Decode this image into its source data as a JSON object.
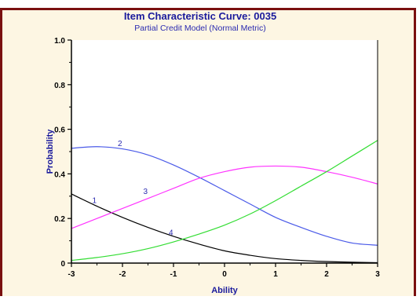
{
  "chart_data": {
    "type": "line",
    "title": "Item Characteristic Curve: 0035",
    "subtitle": "Partial Credit Model (Normal Metric)",
    "xlabel": "Ability",
    "ylabel": "Probability",
    "xlim": [
      -3,
      3
    ],
    "ylim": [
      0,
      1.0
    ],
    "x_ticks": [
      "-3",
      "-2",
      "-1",
      "0",
      "1",
      "2",
      "3"
    ],
    "y_ticks": [
      "0",
      "0.2",
      "0.4",
      "0.6",
      "0.8",
      "1.0"
    ],
    "grid": false,
    "legend": "none",
    "series": [
      {
        "name": "1",
        "color": "#000000",
        "label_at": [
          -2.55,
          0.27
        ],
        "points": [
          [
            -3,
            0.31
          ],
          [
            -2.5,
            0.255
          ],
          [
            -2,
            0.205
          ],
          [
            -1.5,
            0.16
          ],
          [
            -1,
            0.12
          ],
          [
            -0.5,
            0.085
          ],
          [
            0,
            0.055
          ],
          [
            0.5,
            0.035
          ],
          [
            1,
            0.02
          ],
          [
            1.5,
            0.012
          ],
          [
            2,
            0.007
          ],
          [
            2.5,
            0.004
          ],
          [
            3,
            0.002
          ]
        ]
      },
      {
        "name": "2",
        "color": "#4a5ae8",
        "label_at": [
          -2.05,
          0.525
        ],
        "points": [
          [
            -3,
            0.515
          ],
          [
            -2.5,
            0.522
          ],
          [
            -2,
            0.512
          ],
          [
            -1.5,
            0.485
          ],
          [
            -1,
            0.44
          ],
          [
            -0.5,
            0.385
          ],
          [
            0,
            0.325
          ],
          [
            0.5,
            0.265
          ],
          [
            1,
            0.205
          ],
          [
            1.5,
            0.16
          ],
          [
            2,
            0.12
          ],
          [
            2.5,
            0.09
          ],
          [
            3,
            0.08
          ]
        ]
      },
      {
        "name": "3",
        "color": "#ff33ff",
        "label_at": [
          -1.55,
          0.31
        ],
        "points": [
          [
            -3,
            0.155
          ],
          [
            -2.5,
            0.2
          ],
          [
            -2,
            0.245
          ],
          [
            -1.5,
            0.29
          ],
          [
            -1,
            0.335
          ],
          [
            -0.5,
            0.38
          ],
          [
            0,
            0.41
          ],
          [
            0.5,
            0.43
          ],
          [
            1,
            0.435
          ],
          [
            1.5,
            0.43
          ],
          [
            2,
            0.41
          ],
          [
            2.5,
            0.385
          ],
          [
            3,
            0.355
          ]
        ]
      },
      {
        "name": "4",
        "color": "#33dd33",
        "label_at": [
          -1.05,
          0.125
        ],
        "points": [
          [
            -3,
            0.012
          ],
          [
            -2.5,
            0.025
          ],
          [
            -2,
            0.042
          ],
          [
            -1.5,
            0.065
          ],
          [
            -1,
            0.095
          ],
          [
            -0.5,
            0.13
          ],
          [
            0,
            0.17
          ],
          [
            0.5,
            0.22
          ],
          [
            1,
            0.28
          ],
          [
            1.5,
            0.345
          ],
          [
            2,
            0.41
          ],
          [
            2.5,
            0.48
          ],
          [
            3,
            0.55
          ]
        ]
      }
    ]
  }
}
